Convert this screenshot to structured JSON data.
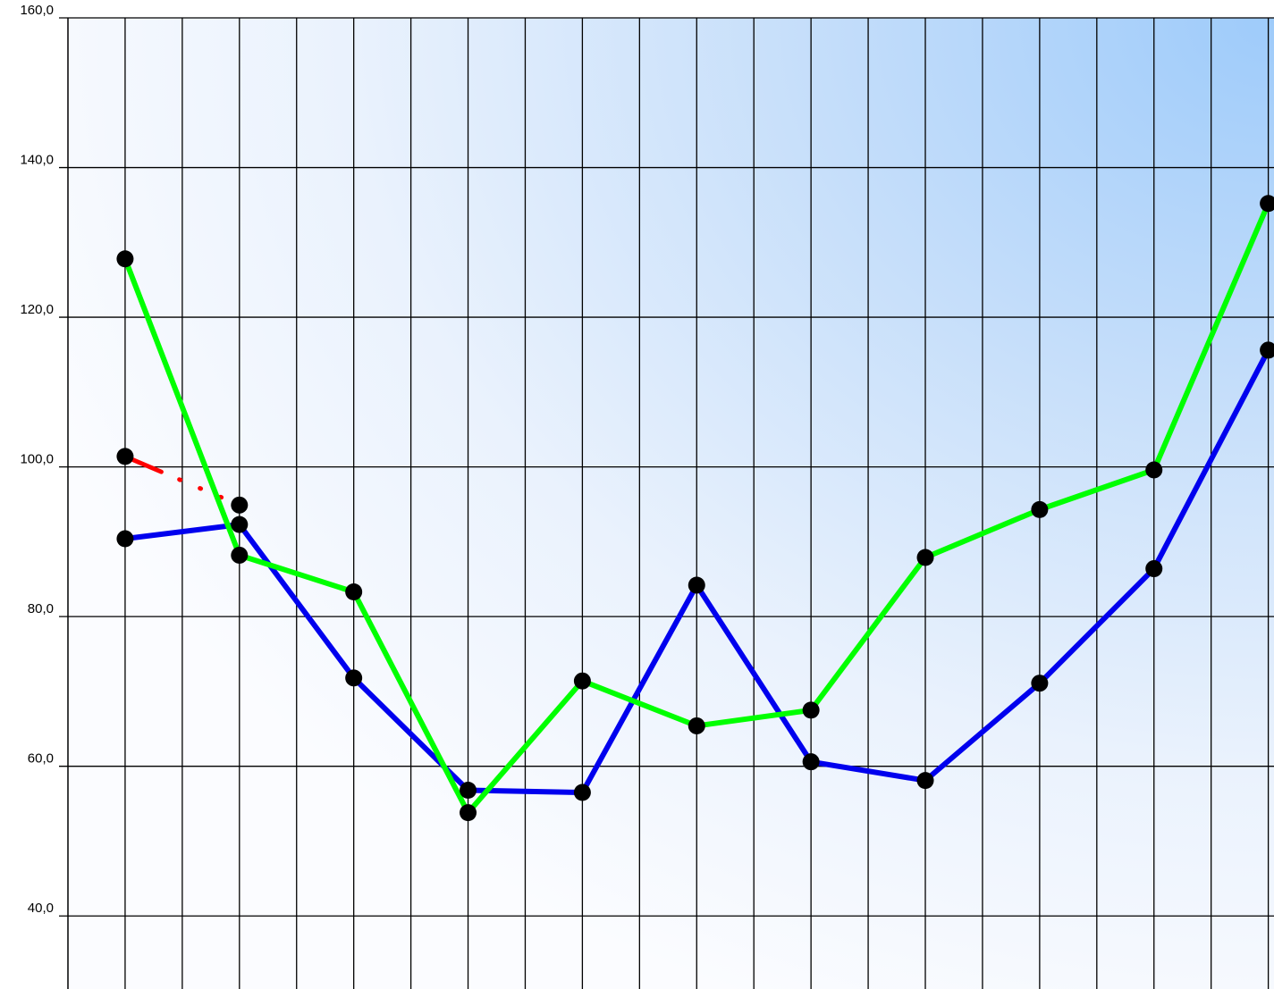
{
  "chart_data": {
    "type": "line",
    "x": [
      1,
      3,
      5,
      7,
      9,
      11,
      13,
      15,
      17,
      19,
      21
    ],
    "series": [
      {
        "name": "Red",
        "color": "#ff0000",
        "values": [
          101.4,
          94.9,
          null,
          null,
          null,
          null,
          null,
          null,
          null,
          null,
          null
        ]
      },
      {
        "name": "Blue",
        "color": "#0000ee",
        "values": [
          90.4,
          92.3,
          71.8,
          56.8,
          56.5,
          84.2,
          60.6,
          58.1,
          71.1,
          86.4,
          115.6
        ]
      },
      {
        "name": "Green",
        "color": "#00ff00",
        "values": [
          127.8,
          88.2,
          83.3,
          53.8,
          71.4,
          65.4,
          67.5,
          87.9,
          94.3,
          99.6,
          135.2
        ]
      }
    ],
    "xlim": [
      0,
      21.1
    ],
    "xticks": [
      1,
      2,
      3,
      4,
      5,
      6,
      7,
      8,
      9,
      10,
      11,
      12,
      13,
      14,
      15,
      16,
      17,
      18,
      19,
      20,
      21
    ],
    "ylim": [
      30,
      160
    ],
    "yticks": [
      {
        "value": 40,
        "label": "40,0"
      },
      {
        "value": 60,
        "label": "60,0"
      },
      {
        "value": 80,
        "label": "80,0"
      },
      {
        "value": 100,
        "label": "100,0"
      },
      {
        "value": 120,
        "label": "120,0"
      },
      {
        "value": 140,
        "label": "140,0"
      },
      {
        "value": 160,
        "label": "160,0"
      }
    ],
    "grid": true
  }
}
